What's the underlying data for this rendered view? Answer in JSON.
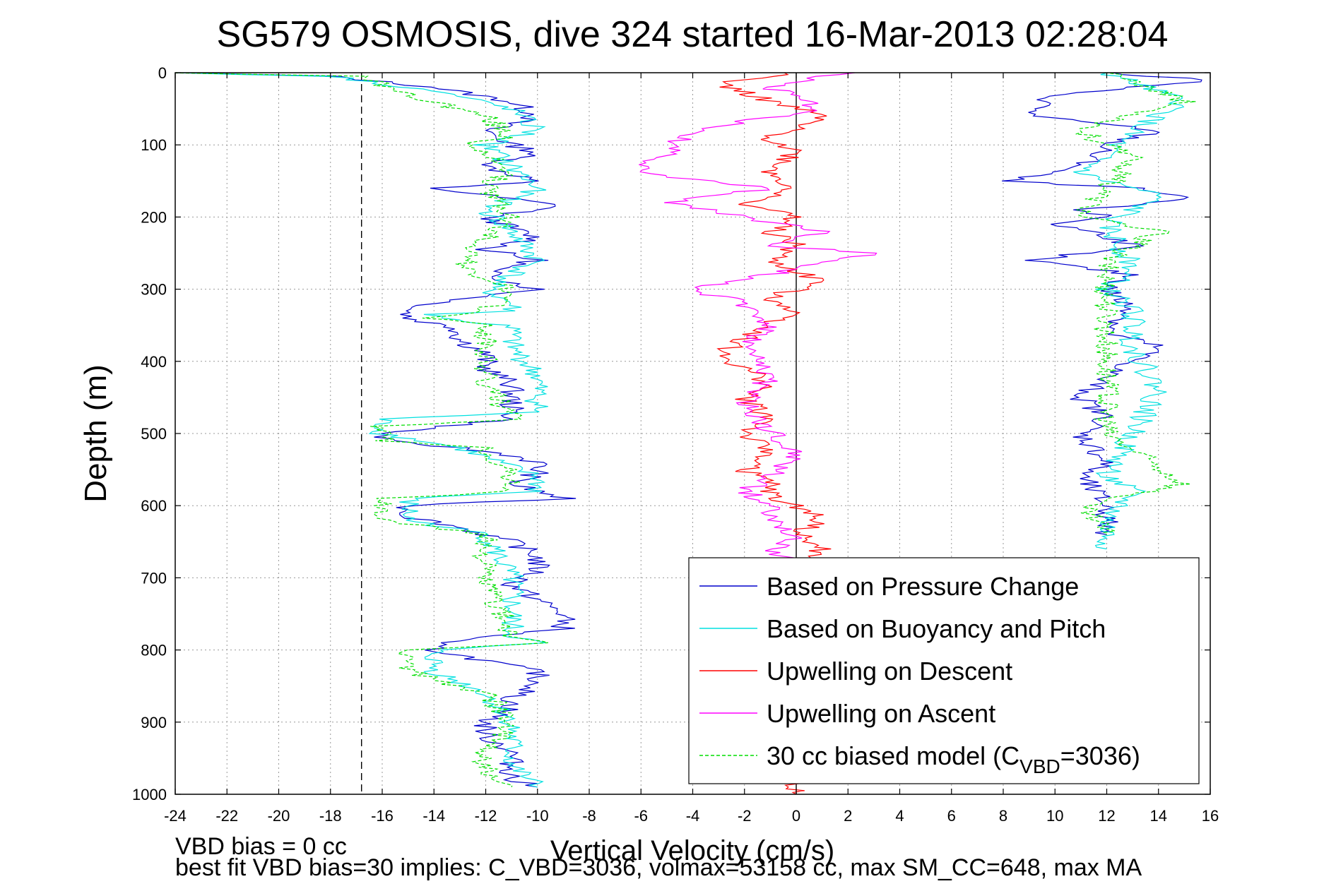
{
  "chart_data": {
    "type": "line",
    "title": "SG579 OSMOSIS, dive 324 started 16-Mar-2013 02:28:04",
    "xlabel": "Vertical Velocity (cm/s)",
    "ylabel": "Depth (m)",
    "xlim": [
      -24,
      16
    ],
    "ylim": [
      0,
      1000
    ],
    "y_reversed": true,
    "grid": true,
    "xticks": [
      "-24",
      "-22",
      "-20",
      "-18",
      "-16",
      "-14",
      "-12",
      "-10",
      "-8",
      "-6",
      "-4",
      "-2",
      "0",
      "2",
      "4",
      "6",
      "8",
      "10",
      "12",
      "14",
      "16"
    ],
    "yticks": [
      "0",
      "100",
      "200",
      "300",
      "400",
      "500",
      "600",
      "700",
      "800",
      "900",
      "1000"
    ],
    "legend_position": "bottom-right",
    "reference_lines": [
      {
        "orientation": "vertical",
        "x": -16.8,
        "style": "dashed",
        "color": "#000000"
      },
      {
        "orientation": "vertical",
        "x": 0,
        "style": "solid",
        "color": "#000000"
      }
    ],
    "series": [
      {
        "name": "Based on Pressure Change",
        "color": "#0000cc",
        "style": "solid",
        "branches": [
          {
            "x": [
              -24,
              -18,
              -14,
              -11,
              -10,
              -12,
              -11,
              -10,
              -12,
              -10,
              -14,
              -12,
              -9,
              -12,
              -11,
              -10,
              -12,
              -10,
              -12,
              -11,
              -10,
              -14,
              -15,
              -15,
              -13,
              -13,
              -12,
              -12,
              -11,
              -11,
              -11,
              -11,
              -16,
              -16,
              -13,
              -11,
              -10,
              -10,
              -11,
              -10,
              -9,
              -15,
              -15,
              -13,
              -11,
              -10,
              -10,
              -11,
              -10,
              -9,
              -9,
              -14,
              -14,
              -12,
              -10,
              -10,
              -11,
              -11,
              -12,
              -12,
              -11,
              -11,
              -11,
              -10
            ],
            "y": [
              0,
              5,
              20,
              40,
              60,
              80,
              100,
              110,
              130,
              150,
              160,
              170,
              185,
              200,
              215,
              230,
              245,
              260,
              275,
              290,
              300,
              320,
              330,
              340,
              355,
              370,
              390,
              410,
              430,
              450,
              470,
              480,
              500,
              510,
              520,
              530,
              540,
              555,
              570,
              580,
              590,
              600,
              615,
              630,
              650,
              670,
              690,
              710,
              730,
              750,
              770,
              790,
              800,
              815,
              830,
              850,
              865,
              880,
              900,
              920,
              940,
              960,
              980,
              990
            ]
          },
          {
            "x": [
              12,
              16,
              10,
              9,
              14,
              12,
              11,
              8,
              13,
              15,
              11,
              12,
              10,
              12,
              13,
              9,
              13,
              12,
              13,
              12,
              14,
              13,
              12,
              11,
              12,
              11,
              12,
              11,
              12,
              12
            ],
            "y": [
              0,
              10,
              30,
              60,
              80,
              100,
              130,
              150,
              160,
              175,
              190,
              200,
              210,
              225,
              240,
              260,
              280,
              300,
              330,
              360,
              380,
              400,
              420,
              450,
              480,
              500,
              540,
              560,
              600,
              640
            ]
          }
        ]
      },
      {
        "name": "Based on Buoyancy and Pitch",
        "color": "#00e0e0",
        "style": "solid",
        "branches": [
          {
            "x": [
              -24,
              -18,
              -14,
              -11,
              -10,
              -12,
              -11,
              -10,
              -12,
              -11,
              -10,
              -12,
              -11,
              -11,
              -14,
              -13,
              -11,
              -11,
              -10,
              -10,
              -16,
              -16,
              -13,
              -10,
              -10,
              -15,
              -15,
              -12,
              -11,
              -11,
              -10,
              -14,
              -14,
              -12,
              -11,
              -11,
              -11,
              -10
            ],
            "y": [
              0,
              5,
              25,
              50,
              80,
              100,
              130,
              160,
              190,
              220,
              260,
              300,
              320,
              330,
              335,
              345,
              350,
              380,
              420,
              470,
              480,
              500,
              520,
              560,
              580,
              590,
              620,
              640,
              700,
              780,
              790,
              800,
              830,
              860,
              900,
              940,
              960,
              990
            ]
          },
          {
            "x": [
              12,
              15,
              13,
              11,
              14,
              12,
              13,
              12,
              13,
              13,
              14,
              13,
              12,
              13,
              12,
              12
            ],
            "y": [
              0,
              40,
              80,
              140,
              170,
              210,
              270,
              300,
              330,
              380,
              440,
              500,
              560,
              580,
              620,
              660
            ]
          }
        ]
      },
      {
        "name": "Upwelling on Descent",
        "color": "#ff0000",
        "style": "solid",
        "branches": [
          {
            "x": [
              0,
              -3,
              -1,
              1,
              -1,
              0,
              -1,
              0,
              -2,
              0,
              -1,
              0,
              -1,
              1,
              -1,
              0,
              -1,
              -2,
              -3,
              -2,
              -1,
              -2,
              -1,
              -2,
              -1,
              -2,
              -1,
              -1,
              0,
              1,
              0,
              1,
              0,
              0
            ],
            "y": [
              0,
              15,
              40,
              60,
              90,
              110,
              140,
              160,
              180,
              200,
              220,
              240,
              260,
              290,
              310,
              330,
              350,
              370,
              390,
              410,
              430,
              450,
              480,
              500,
              530,
              550,
              570,
              590,
              600,
              620,
              640,
              660,
              680,
              1000
            ]
          }
        ]
      },
      {
        "name": "Upwelling on Ascent",
        "color": "#ff00ff",
        "style": "solid",
        "branches": [
          {
            "x": [
              2,
              -1,
              1,
              -4,
              -6,
              -1,
              -5,
              -2,
              1,
              -1,
              3,
              -1,
              -4,
              -2,
              -1,
              -2,
              -1,
              -2,
              -1,
              0,
              -1,
              -2,
              -1,
              -1,
              0,
              -1,
              0
            ],
            "y": [
              0,
              20,
              50,
              80,
              140,
              160,
              180,
              200,
              220,
              240,
              250,
              280,
              300,
              320,
              350,
              380,
              420,
              460,
              500,
              530,
              560,
              580,
              600,
              620,
              640,
              660,
              680
            ]
          }
        ]
      },
      {
        "name": "30 cc biased model (C_VBD=3036)",
        "legend_main": "30 cc biased model (C",
        "legend_sub": "VBD",
        "legend_tail": "=3036)",
        "color": "#00dd00",
        "style": "dashed",
        "branches": [
          {
            "x": [
              -24,
              -17,
              -15,
              -12,
              -11,
              -13,
              -11,
              -12,
              -11,
              -12,
              -13,
              -11,
              -12,
              -14,
              -12,
              -12,
              -12,
              -11,
              -16,
              -16,
              -12,
              -11,
              -11,
              -16,
              -16,
              -12,
              -12,
              -11,
              -10,
              -15,
              -15,
              -12,
              -11,
              -12,
              -12,
              -11
            ],
            "y": [
              0,
              5,
              30,
              60,
              90,
              100,
              130,
              160,
              200,
              230,
              270,
              300,
              330,
              340,
              350,
              380,
              430,
              480,
              490,
              510,
              520,
              560,
              580,
              590,
              620,
              640,
              700,
              780,
              790,
              800,
              830,
              860,
              900,
              940,
              980,
              990
            ]
          },
          {
            "x": [
              12,
              15,
              11,
              13,
              12,
              11,
              14,
              12,
              12,
              12,
              12,
              15,
              11,
              12
            ],
            "y": [
              0,
              40,
              80,
              120,
              160,
              200,
              220,
              260,
              300,
              400,
              500,
              570,
              600,
              640
            ]
          }
        ]
      }
    ]
  },
  "footer": {
    "line1": "VBD bias = 0 cc",
    "line2": "best fit VBD bias=30 implies: C_VBD=3036, volmax=53158 cc, max SM_CC=648, max MA"
  }
}
